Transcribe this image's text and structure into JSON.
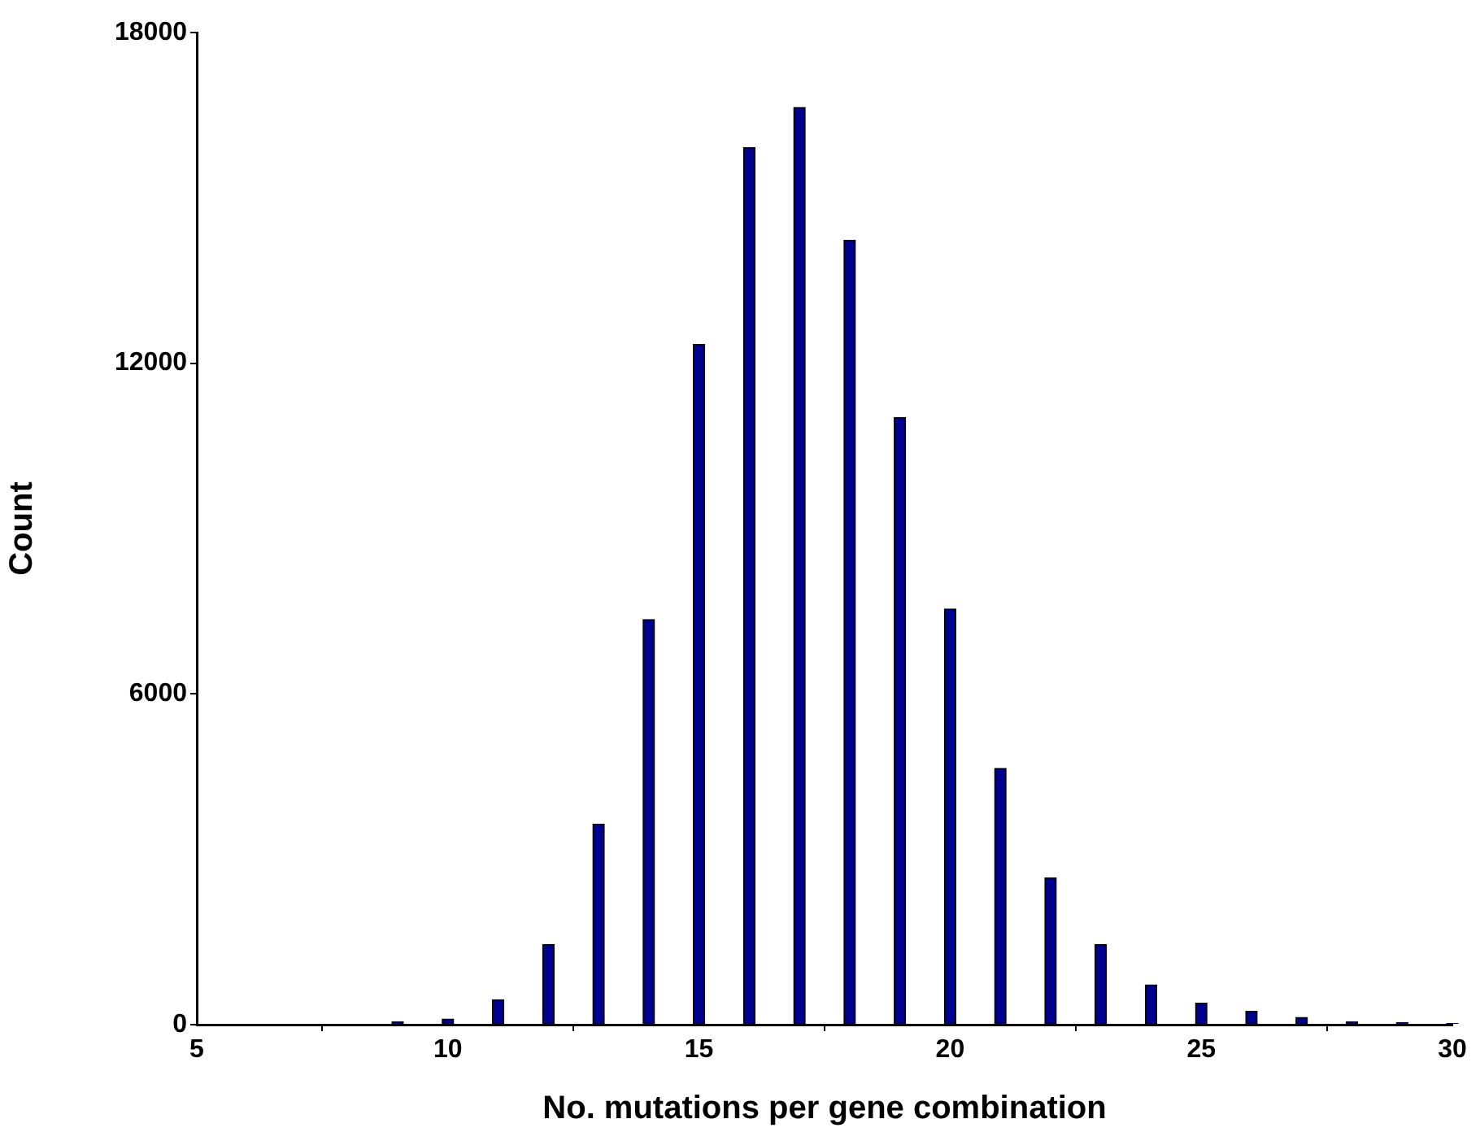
{
  "chart_data": {
    "type": "bar",
    "xlabel": "No. mutations per gene combination",
    "ylabel": "Count",
    "x": [
      9,
      10,
      11,
      12,
      13,
      14,
      15,
      16,
      17,
      18,
      19,
      20,
      21,
      22,
      23,
      24,
      25,
      26,
      27,
      28,
      29,
      30
    ],
    "values": [
      50,
      100,
      450,
      1450,
      3640,
      7350,
      12340,
      15910,
      16640,
      14230,
      11010,
      7540,
      4650,
      2660,
      1450,
      720,
      390,
      240,
      130,
      50,
      40,
      20
    ],
    "color": "#000090",
    "xlim": [
      5,
      30
    ],
    "xticks": [
      5,
      10,
      15,
      20,
      25,
      30
    ],
    "ylim": [
      0,
      18000
    ],
    "yticks": [
      0,
      6000,
      12000,
      18000
    ],
    "grid": false,
    "legend": false
  }
}
